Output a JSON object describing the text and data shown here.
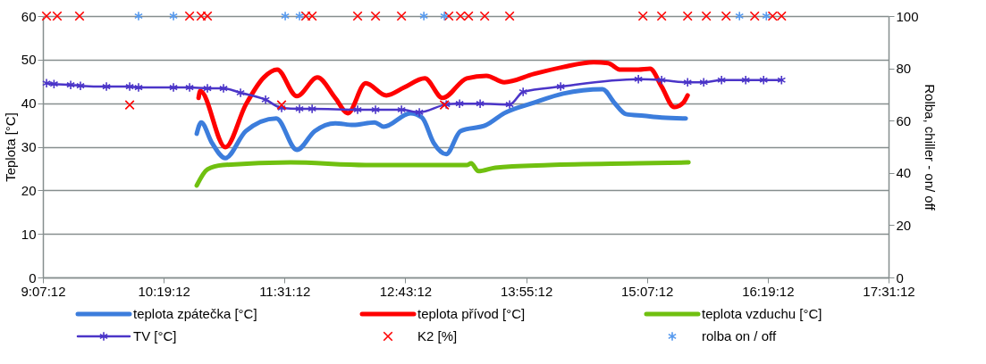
{
  "chart_data": {
    "type": "line",
    "ylabel": "Teplota [°C]",
    "y2label": "Rolba, chiller - on/ off",
    "xlim": [
      9.12,
      17.52
    ],
    "xticks": [
      {
        "value": 9.12,
        "label": "9:07:12"
      },
      {
        "value": 10.32,
        "label": "10:19:12"
      },
      {
        "value": 11.52,
        "label": "11:31:12"
      },
      {
        "value": 12.72,
        "label": "12:43:12"
      },
      {
        "value": 13.92,
        "label": "13:55:12"
      },
      {
        "value": 15.12,
        "label": "15:07:12"
      },
      {
        "value": 16.32,
        "label": "16:19:12"
      },
      {
        "value": 17.52,
        "label": "17:31:12"
      }
    ],
    "ylim": [
      0,
      60
    ],
    "yticks": [
      0,
      10,
      20,
      30,
      40,
      50,
      60
    ],
    "y2lim": [
      0,
      100
    ],
    "y2ticks": [
      0,
      20,
      40,
      60,
      80,
      100
    ],
    "grid": "y",
    "legend": "bottom",
    "series": [
      {
        "name": "teplota zpátečka [°C]",
        "color": "#3c7ddc",
        "x": [
          10.648,
          10.692,
          10.799,
          10.932,
          11.136,
          11.438,
          11.642,
          11.82,
          12.024,
          12.202,
          12.415,
          12.504,
          12.771,
          12.886,
          13.001,
          13.126,
          13.268,
          13.525,
          13.703,
          13.996,
          14.289,
          14.68,
          14.796,
          14.911,
          15.089,
          15.266,
          15.506
        ],
        "values": [
          33.0,
          35.6,
          30.9,
          27.4,
          33.6,
          36.5,
          29.3,
          33.6,
          35.4,
          35.0,
          35.6,
          34.6,
          37.7,
          36.7,
          30.9,
          28.3,
          33.6,
          35.0,
          37.7,
          40.1,
          42.2,
          43.2,
          40.1,
          37.5,
          37.1,
          36.7,
          36.5
        ]
      },
      {
        "name": "teplota přívod [°C]",
        "color": "#ff0000",
        "x": [
          10.666,
          10.683,
          10.932,
          11.136,
          11.314,
          11.447,
          11.642,
          11.847,
          12.024,
          12.149,
          12.326,
          12.531,
          12.708,
          12.913,
          13.09,
          13.33,
          13.525,
          13.703,
          13.996,
          14.289,
          14.591,
          14.733,
          14.858,
          15.035,
          15.151,
          15.266,
          15.391,
          15.48,
          15.524
        ],
        "values": [
          41.2,
          42.8,
          29.9,
          39.7,
          45.9,
          47.7,
          41.6,
          45.9,
          41.2,
          37.7,
          44.6,
          41.8,
          43.6,
          45.7,
          41.2,
          45.7,
          46.3,
          44.8,
          46.7,
          48.3,
          49.4,
          49.2,
          47.7,
          47.7,
          47.9,
          43.8,
          39.1,
          40.1,
          41.8
        ]
      },
      {
        "name": "teplota vzduchu [°C]",
        "color": "#70c010",
        "x": [
          10.648,
          10.754,
          10.905,
          11.58,
          12.326,
          13.33,
          13.374,
          13.446,
          13.614,
          14.147,
          15.035,
          15.533
        ],
        "values": [
          21.1,
          24.8,
          25.8,
          26.4,
          25.8,
          25.8,
          26.2,
          24.4,
          25.2,
          25.8,
          26.2,
          26.4
        ]
      },
      {
        "name": "TV [°C]",
        "color": "#4b35c8",
        "marker": "cross",
        "x": [
          9.156,
          9.23,
          9.396,
          9.493,
          9.751,
          9.982,
          10.07,
          10.417,
          10.577,
          10.754,
          10.914,
          11.083,
          11.332,
          11.491,
          11.669,
          11.794,
          12.246,
          12.424,
          12.682,
          12.859,
          13.126,
          13.259,
          13.463,
          13.756,
          13.89,
          14.263,
          15.035,
          15.266,
          15.524,
          15.684,
          15.861,
          16.101,
          16.279,
          16.457
        ],
        "values": [
          44.6,
          44.4,
          44.2,
          44.0,
          43.8,
          43.8,
          43.6,
          43.6,
          43.6,
          43.4,
          43.4,
          42.4,
          40.8,
          38.9,
          38.7,
          38.7,
          38.5,
          38.5,
          38.5,
          37.9,
          39.7,
          39.9,
          39.9,
          39.7,
          42.6,
          43.8,
          45.5,
          45.3,
          44.8,
          44.8,
          45.3,
          45.3,
          45.3,
          45.3
        ]
      },
      {
        "name": "K2 [%]",
        "color": "#ff0000",
        "type": "scatter",
        "axis": "y2",
        "x": [
          9.156,
          9.262,
          9.484,
          9.982,
          10.577,
          10.692,
          10.754,
          11.491,
          11.731,
          11.794,
          12.246,
          12.424,
          12.682,
          13.108,
          13.152,
          13.268,
          13.348,
          13.508,
          13.756,
          15.08,
          15.266,
          15.524,
          15.71,
          15.906,
          16.19,
          16.368,
          16.457
        ],
        "values": [
          100,
          100,
          100,
          66,
          100,
          100,
          100,
          66,
          100,
          100,
          100,
          100,
          100,
          66,
          100,
          100,
          100,
          100,
          100,
          100,
          100,
          100,
          100,
          100,
          100,
          100,
          100
        ]
      },
      {
        "name": "rolba on / off",
        "color": "#5599ee",
        "type": "scatter",
        "marker": "cross",
        "axis": "y2",
        "x": [
          10.07,
          10.417,
          11.527,
          11.669,
          12.904,
          13.108,
          16.039,
          16.306
        ],
        "values": [
          100,
          100,
          100,
          100,
          100,
          100,
          100,
          100
        ]
      }
    ]
  }
}
